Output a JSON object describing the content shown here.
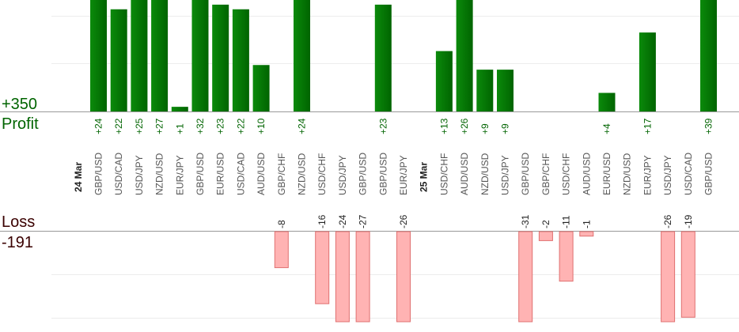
{
  "summary": {
    "profit_total": "+350",
    "profit_label": "Profit",
    "loss_label": "Loss",
    "loss_total": "-191"
  },
  "colors": {
    "profit_bar_dark": "#006400",
    "profit_bar_light": "#0b8a0b",
    "profit_text": "#006400",
    "loss_bar": "#ffb3b3",
    "loss_bar_stroke": "#e07070",
    "loss_text": "#3a0000"
  },
  "chart_data": {
    "type": "bar",
    "title": "",
    "xlabel": "",
    "ylabel": "",
    "grid": true,
    "date_markers": [
      {
        "label": "24 Mar",
        "before_index": 0
      },
      {
        "label": "25 Mar",
        "before_index": 16
      }
    ],
    "categories": [
      "GBP/USD",
      "USD/CAD",
      "USD/JPY",
      "NZD/USD",
      "EUR/JPY",
      "GBP/USD",
      "EUR/USD",
      "USD/CAD",
      "AUD/USD",
      "GBP/CHF",
      "NZD/USD",
      "USD/CHF",
      "USD/JPY",
      "GBP/USD",
      "GBP/USD",
      "EUR/JPY",
      "USD/CHF",
      "AUD/USD",
      "NZD/USD",
      "USD/JPY",
      "GBP/USD",
      "GBP/CHF",
      "USD/CHF",
      "AUD/USD",
      "EUR/USD",
      "NZD/USD",
      "EUR/JPY",
      "USD/JPY",
      "USD/CAD",
      "GBP/USD"
    ],
    "values": [
      24,
      22,
      25,
      27,
      1,
      32,
      23,
      22,
      10,
      -8,
      24,
      -16,
      -24,
      -27,
      23,
      -26,
      13,
      26,
      9,
      9,
      -31,
      -2,
      -11,
      -1,
      4,
      0,
      17,
      -26,
      -19,
      39
    ],
    "value_labels": [
      "+24",
      "+22",
      "+25",
      "+27",
      "+1",
      "+32",
      "+23",
      "+22",
      "+10",
      "-8",
      "+24",
      "-16",
      "-24",
      "-27",
      "+23",
      "-26",
      "+13",
      "+26",
      "+9",
      "+9",
      "-31",
      "-2",
      "-11",
      "-1",
      "+4",
      "",
      "+17",
      "-26",
      "-19",
      "+39"
    ],
    "profit_axis_max": 24,
    "loss_axis_max": 20
  }
}
